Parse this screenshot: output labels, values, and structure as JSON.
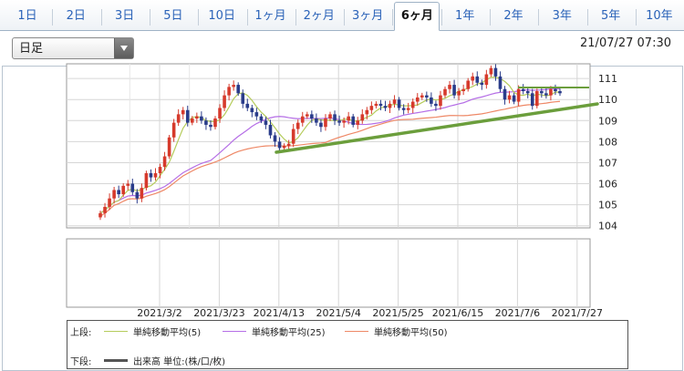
{
  "tabs": [
    "1日",
    "2日",
    "3日",
    "5日",
    "10日",
    "1ヶ月",
    "2ヶ月",
    "3ヶ月",
    "6ヶ月",
    "1年",
    "2年",
    "3年",
    "5年",
    "10年"
  ],
  "active_tab": "6ヶ月",
  "select_value": "日足",
  "timestamp": "21/07/27 07:30",
  "legend": {
    "upper_label": "上段:",
    "lower_label": "下段:",
    "sma5": "単純移動平均(5)",
    "sma25": "単純移動平均(25)",
    "sma50": "単純移動平均(50)",
    "volume": "出来高 単位:(株/口/枚)"
  },
  "colors": {
    "sma5": "#b5cc5c",
    "sma25": "#b56ee6",
    "sma50": "#ee8866",
    "up": "#d63a2c",
    "down": "#2a3c8a",
    "trend": "#6b9e3c",
    "volume": "#555555"
  },
  "chart_data": {
    "type": "candlestick",
    "ylim": [
      103.9,
      111.7
    ],
    "y_ticks": [
      104,
      105,
      106,
      107,
      108,
      109,
      110,
      111
    ],
    "x_labels": [
      "2021/3/2",
      "2021/3/23",
      "2021/4/13",
      "2021/5/4",
      "2021/5/25",
      "2021/6/15",
      "2021/7/6",
      "2021/7/27"
    ],
    "closes": [
      104.6,
      104.9,
      105.3,
      105.7,
      105.5,
      105.9,
      106.0,
      105.6,
      105.3,
      105.8,
      106.5,
      106.3,
      106.5,
      106.8,
      107.3,
      108.2,
      108.9,
      109.3,
      109.5,
      108.9,
      109.1,
      109.2,
      109.0,
      108.8,
      108.7,
      109.1,
      109.6,
      110.2,
      110.6,
      110.7,
      110.3,
      109.8,
      109.6,
      109.4,
      109.2,
      109.0,
      108.8,
      108.3,
      108.0,
      107.7,
      107.8,
      107.9,
      108.6,
      108.9,
      109.2,
      109.3,
      109.1,
      108.9,
      108.7,
      109.1,
      109.3,
      109.0,
      108.9,
      109.0,
      109.2,
      108.8,
      109.0,
      109.3,
      109.5,
      109.7,
      109.8,
      109.7,
      109.6,
      109.8,
      110.0,
      109.6,
      109.5,
      109.6,
      109.9,
      110.1,
      110.2,
      110.1,
      109.8,
      109.7,
      110.2,
      110.5,
      110.7,
      110.2,
      110.4,
      110.5,
      110.9,
      111.1,
      110.8,
      110.7,
      111.2,
      111.5,
      111.1,
      110.5,
      110.0,
      110.2,
      109.9,
      110.5,
      110.4,
      110.3,
      109.7,
      110.4,
      110.3,
      110.2,
      110.5,
      110.4,
      110.3
    ]
  }
}
